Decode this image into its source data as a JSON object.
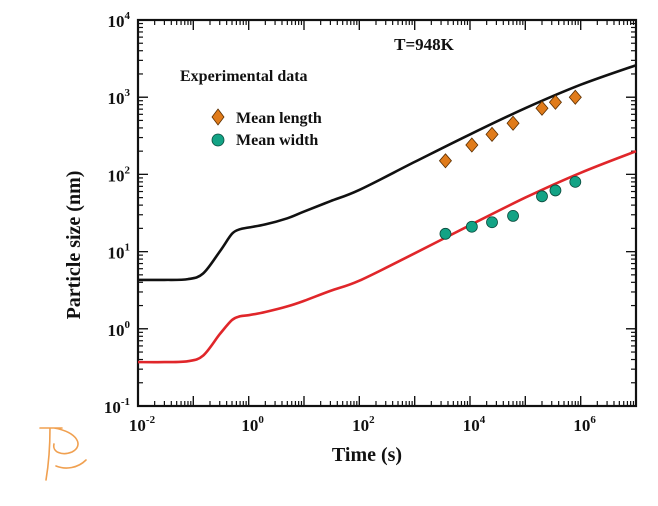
{
  "chart_data": {
    "type": "scatter",
    "xlabel": "Time (s)",
    "ylabel": "Particle size (nm)",
    "x_scale": "log",
    "y_scale": "log",
    "xlim": [
      0.01,
      10000000
    ],
    "ylim": [
      0.1,
      10000
    ],
    "x_ticks": [
      {
        "value": 0.01,
        "base": "10",
        "exp": "-2"
      },
      {
        "value": 1,
        "base": "10",
        "exp": "0"
      },
      {
        "value": 100,
        "base": "10",
        "exp": "2"
      },
      {
        "value": 10000,
        "base": "10",
        "exp": "4"
      },
      {
        "value": 1000000,
        "base": "10",
        "exp": "6"
      }
    ],
    "y_ticks": [
      {
        "value": 0.1,
        "base": "10",
        "exp": "-1"
      },
      {
        "value": 1,
        "base": "10",
        "exp": "0"
      },
      {
        "value": 10,
        "base": "10",
        "exp": "1"
      },
      {
        "value": 100,
        "base": "10",
        "exp": "2"
      },
      {
        "value": 1000,
        "base": "10",
        "exp": "3"
      },
      {
        "value": 10000,
        "base": "10",
        "exp": "4"
      }
    ],
    "annotation": "T=948K",
    "annotation_color": "#e0262a",
    "legend_title": "Experimental data",
    "legend_position": "top-left",
    "grid": false,
    "series": [
      {
        "name": "Mean length",
        "kind": "points",
        "marker": "diamond",
        "color": "#e07b1a",
        "x": [
          3600,
          10800,
          25000,
          60000,
          200000,
          350000,
          800000
        ],
        "y": [
          150,
          240,
          330,
          460,
          720,
          860,
          1000
        ]
      },
      {
        "name": "Mean width",
        "kind": "points",
        "marker": "circle",
        "color": "#13a385",
        "x": [
          3600,
          10800,
          25000,
          60000,
          200000,
          350000,
          800000
        ],
        "y": [
          17,
          21,
          24,
          29,
          52,
          62,
          80
        ]
      },
      {
        "kind": "line",
        "color": "#111111",
        "x": [
          0.01,
          0.03,
          0.08,
          0.15,
          0.3,
          0.5,
          0.7,
          1,
          2,
          5,
          10,
          30,
          100,
          1000,
          10000,
          100000,
          1000000,
          10000000
        ],
        "y": [
          4.3,
          4.3,
          4.4,
          5.2,
          10,
          17,
          19.5,
          20.5,
          22.5,
          27,
          33,
          45,
          63,
          145,
          330,
          720,
          1450,
          2600
        ]
      },
      {
        "kind": "line",
        "color": "#e0262a",
        "x": [
          0.01,
          0.03,
          0.08,
          0.15,
          0.3,
          0.5,
          0.7,
          1,
          2,
          5,
          10,
          30,
          100,
          1000,
          10000,
          100000,
          1000000,
          10000000
        ],
        "y": [
          0.37,
          0.37,
          0.38,
          0.45,
          0.85,
          1.3,
          1.45,
          1.5,
          1.65,
          1.95,
          2.3,
          3.1,
          4.2,
          9.5,
          22,
          50,
          105,
          200
        ]
      }
    ]
  },
  "logo": {
    "name": "logo-mark",
    "color": "#f0a050"
  }
}
